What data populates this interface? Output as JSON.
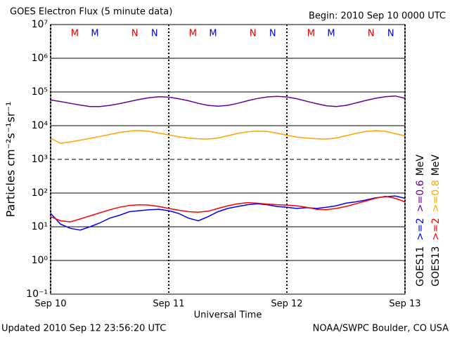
{
  "chart_data": {
    "type": "line",
    "title": "GOES Electron Flux (5 minute data)",
    "subtitle": "Begin: 2010 Sep 10 0000 UTC",
    "xlabel": "Universal Time",
    "ylabel": "Particles cm⁻²s⁻¹sr⁻¹",
    "footer_left": "Updated 2010 Sep 12 23:56:20 UTC",
    "footer_right": "NOAA/SWPC Boulder, CO USA",
    "energy_unit": "MeV",
    "log_y": true,
    "grid": true,
    "threshold": 1000,
    "xlim": [
      0,
      72
    ],
    "xticks": [
      {
        "value": 0,
        "label": "Sep 10"
      },
      {
        "value": 24,
        "label": "Sep 11"
      },
      {
        "value": 48,
        "label": "Sep 12"
      },
      {
        "value": 72,
        "label": "Sep 13"
      }
    ],
    "ylim": [
      0.1,
      10000000
    ],
    "yticks": [
      {
        "value": 0.1,
        "label": "10⁻¹"
      },
      {
        "value": 1,
        "label": "10⁰"
      },
      {
        "value": 10,
        "label": "10¹"
      },
      {
        "value": 100,
        "label": "10²"
      },
      {
        "value": 1000,
        "label": "10³"
      },
      {
        "value": 10000,
        "label": "10⁴"
      },
      {
        "value": 100000,
        "label": "10⁵"
      },
      {
        "value": 1000000,
        "label": "10⁶"
      },
      {
        "value": 10000000,
        "label": "10⁷"
      }
    ],
    "markers": [
      {
        "text": "M",
        "x": 4.9,
        "color": "#e00000"
      },
      {
        "text": "M",
        "x": 9,
        "color": "#0000e0"
      },
      {
        "text": "N",
        "x": 17.1,
        "color": "#e00000"
      },
      {
        "text": "N",
        "x": 21.1,
        "color": "#0000e0"
      },
      {
        "text": "M",
        "x": 28.9,
        "color": "#e00000"
      },
      {
        "text": "M",
        "x": 33,
        "color": "#0000e0"
      },
      {
        "text": "N",
        "x": 41.1,
        "color": "#e00000"
      },
      {
        "text": "N",
        "x": 45.1,
        "color": "#0000e0"
      },
      {
        "text": "M",
        "x": 52.9,
        "color": "#e00000"
      },
      {
        "text": "M",
        "x": 57,
        "color": "#0000e0"
      },
      {
        "text": "N",
        "x": 65.1,
        "color": "#e00000"
      },
      {
        "text": "N",
        "x": 69.1,
        "color": "#0000e0"
      }
    ],
    "x": [
      0,
      2,
      4,
      6,
      8,
      10,
      12,
      14,
      16,
      18,
      20,
      22,
      24,
      26,
      28,
      30,
      32,
      34,
      36,
      38,
      40,
      42,
      44,
      46,
      48,
      50,
      52,
      54,
      56,
      58,
      60,
      62,
      64,
      66,
      68,
      70,
      72
    ],
    "series": [
      {
        "name": ">=2",
        "satellite": "GOES11",
        "color": "#0000ff",
        "values": [
          25,
          12,
          9,
          8,
          10,
          13,
          18,
          22,
          28,
          30,
          32,
          33,
          30,
          25,
          18,
          15,
          20,
          28,
          35,
          40,
          45,
          48,
          45,
          40,
          38,
          35,
          37,
          35,
          38,
          42,
          50,
          55,
          62,
          72,
          78,
          82,
          70
        ]
      },
      {
        "name": ">=0.6",
        "satellite": "GOES11",
        "color": "#660099",
        "values": [
          58000,
          52000,
          46000,
          41000,
          37000,
          37000,
          40000,
          45000,
          52000,
          60000,
          67000,
          72000,
          70000,
          63000,
          55000,
          46000,
          40000,
          38000,
          40000,
          46000,
          55000,
          64000,
          71000,
          74000,
          71000,
          63000,
          53000,
          45000,
          39000,
          37000,
          40000,
          47000,
          56000,
          65000,
          72000,
          76000,
          65000
        ]
      },
      {
        "name": ">=2",
        "satellite": "GOES13",
        "color": "#ff0000",
        "values": [
          20,
          15,
          14,
          17,
          21,
          26,
          32,
          38,
          43,
          45,
          44,
          40,
          35,
          31,
          28,
          27,
          29,
          35,
          42,
          48,
          52,
          50,
          47,
          45,
          44,
          42,
          38,
          33,
          32,
          35,
          40,
          48,
          58,
          70,
          80,
          70,
          55
        ]
      },
      {
        "name": ">=0.8",
        "satellite": "GOES13",
        "color": "#ffa500",
        "values": [
          4200,
          3000,
          3300,
          3700,
          4200,
          4800,
          5500,
          6300,
          6900,
          7200,
          6800,
          6000,
          5300,
          4700,
          4300,
          4100,
          4000,
          4300,
          5000,
          5900,
          6600,
          6900,
          6700,
          6000,
          5200,
          4600,
          4300,
          4100,
          4000,
          4300,
          5000,
          5900,
          6700,
          7100,
          6800,
          5800,
          5000
        ]
      }
    ]
  }
}
